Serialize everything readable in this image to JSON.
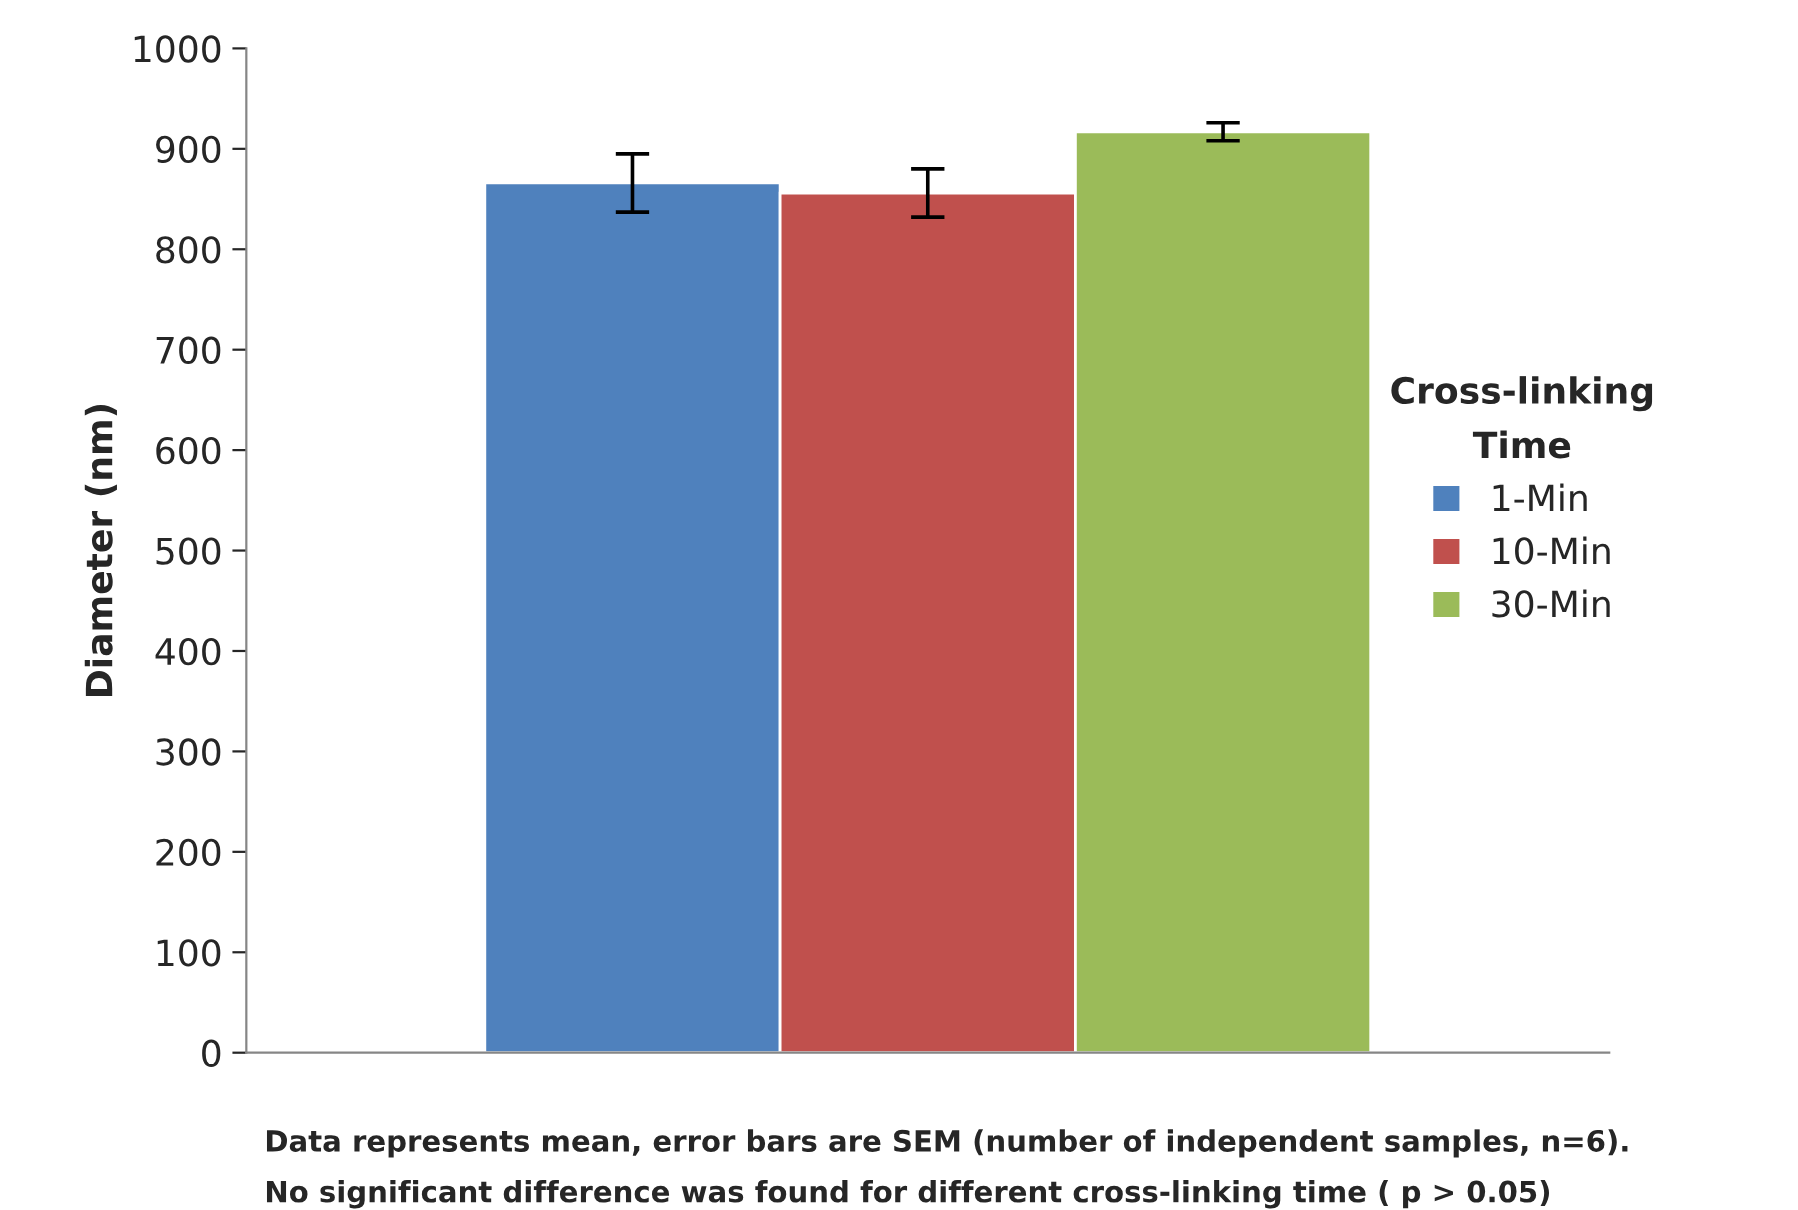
{
  "chart_data": {
    "type": "bar",
    "ylabel": "Diameter (nm)",
    "legend_title": "Cross-linking\nTime",
    "categories": [
      null
    ],
    "series": [
      {
        "name": "1-Min",
        "color": "#4f81bd",
        "values": [
          866
        ],
        "errors": [
          29
        ]
      },
      {
        "name": "10-Min",
        "color": "#c0504d",
        "values": [
          856
        ],
        "errors": [
          24
        ]
      },
      {
        "name": "30-Min",
        "color": "#9bbb59",
        "values": [
          917
        ],
        "errors": [
          9
        ]
      }
    ],
    "ylim": [
      0,
      1000
    ],
    "yticks": [
      0,
      100,
      200,
      300,
      400,
      500,
      600,
      700,
      800,
      900,
      1000
    ],
    "grid": false,
    "legend": "right",
    "annotations": [
      "Data represents mean, error bars are SEM (number of independent samples, n=6).",
      "No significant difference was found for different cross-linking time ( p > 0.05)"
    ]
  }
}
